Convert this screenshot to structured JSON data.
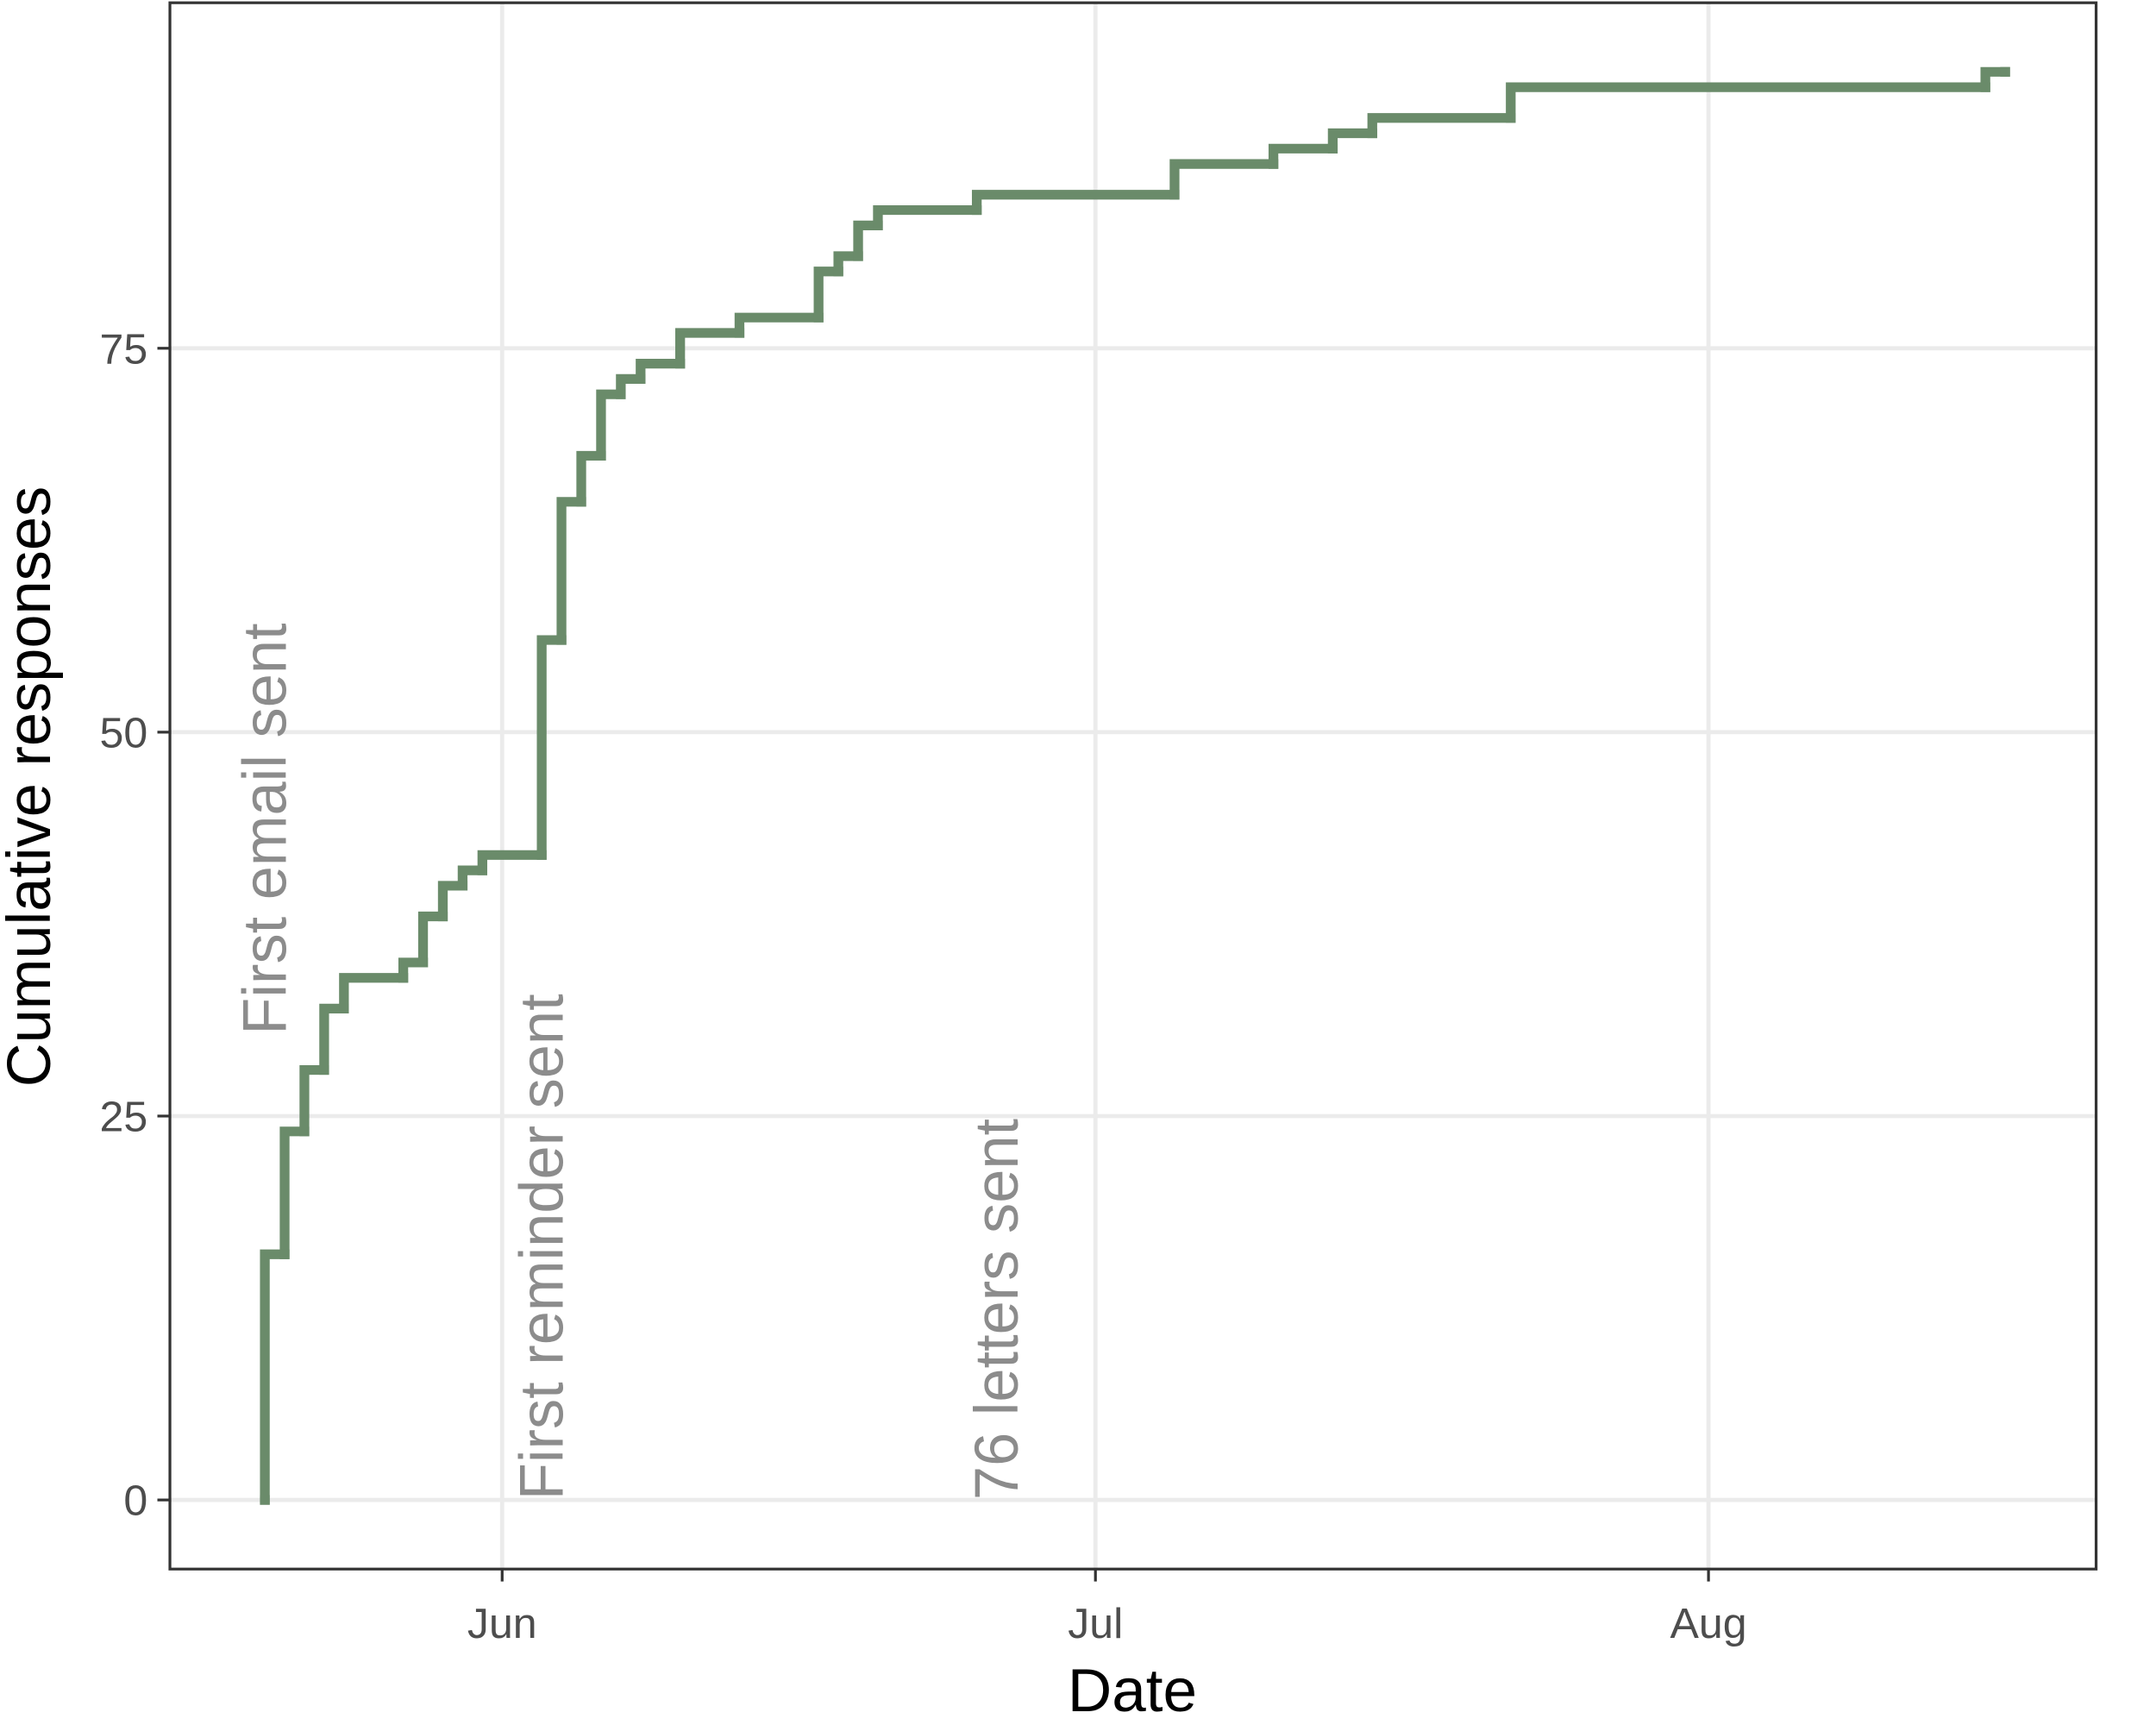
{
  "chart_data": {
    "type": "step",
    "x_label": "Date",
    "y_label": "Cumulative responses",
    "xlim": [
      -16.8,
      80.6
    ],
    "ylim": [
      -4.5,
      97.5
    ],
    "xticks": [
      {
        "value": 0,
        "label": "Jun"
      },
      {
        "value": 30,
        "label": "Jul"
      },
      {
        "value": 61,
        "label": "Aug"
      }
    ],
    "yticks": [
      0,
      25,
      50,
      75
    ],
    "grid": true,
    "series": [
      {
        "color": "#6a8b6a",
        "x": [
          -12,
          -12,
          -11,
          -10,
          -9,
          -8,
          -5,
          -4,
          -3,
          -2,
          -1,
          2,
          3,
          4,
          5,
          6,
          7,
          9,
          12,
          16,
          17,
          18,
          19,
          24,
          34,
          39,
          42,
          44,
          51,
          75,
          76
        ],
        "values": [
          0,
          16,
          24,
          28,
          32,
          34,
          35,
          38,
          40,
          41,
          42,
          56,
          65,
          68,
          72,
          73,
          74,
          76,
          77,
          80,
          81,
          83,
          84,
          85,
          87,
          88,
          89,
          90,
          92,
          93,
          93
        ]
      }
    ],
    "annotations": [
      {
        "text": "First email sent",
        "x": -12,
        "y": 30.3
      },
      {
        "text": "First reminder sent",
        "x": 2,
        "y": 0
      },
      {
        "text": "76 letters sent",
        "x": 25,
        "y": 0
      }
    ]
  }
}
